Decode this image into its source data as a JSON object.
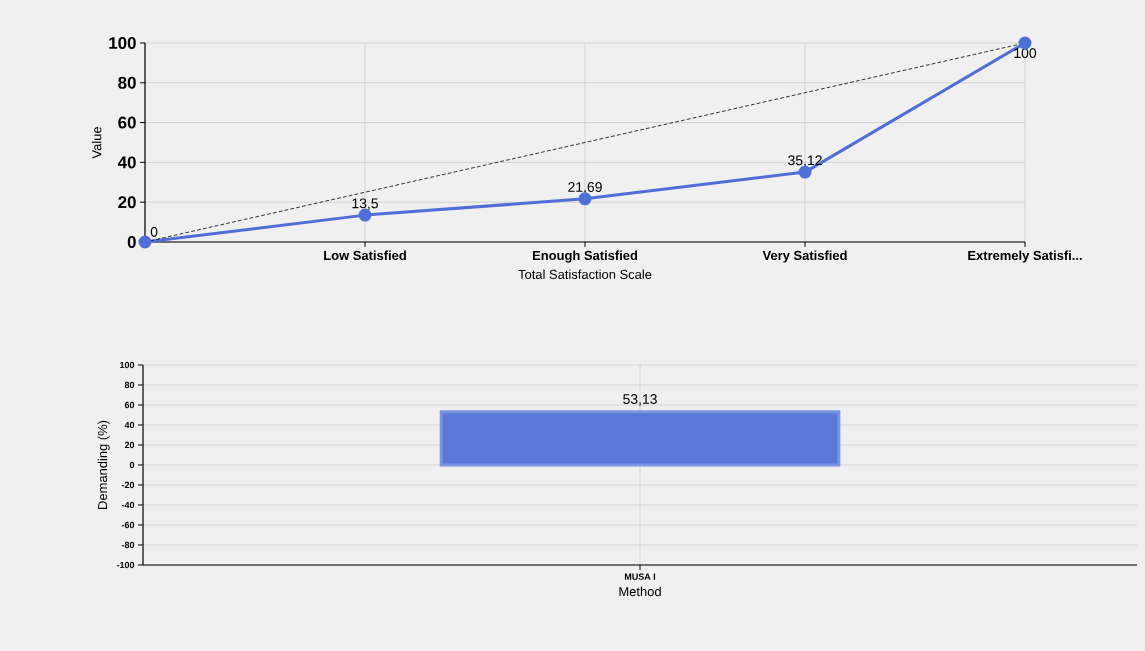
{
  "chart_data": [
    {
      "type": "line",
      "xlabel": "Total Satisfaction Scale",
      "ylabel": "Value",
      "categories": [
        null,
        "Low Satisfied",
        "Enough Satisfied",
        "Very Satisfied",
        "Extremely Satisfi..."
      ],
      "series": [
        {
          "type": "line",
          "color": "#4f6fd8",
          "values": [
            0,
            13.5,
            21.69,
            35.12,
            100
          ],
          "value_labels": [
            "0",
            "13,5",
            "21,69",
            "35,12",
            "100"
          ],
          "marker": "circle",
          "line_style": "solid"
        },
        {
          "type": "line",
          "color": "#000000",
          "values": [
            0,
            25,
            50,
            75,
            100
          ],
          "marker": "none",
          "line_style": "dashed"
        }
      ],
      "ylim": [
        0,
        100
      ],
      "yticks": [
        0,
        20,
        40,
        60,
        80,
        100
      ],
      "grid": true
    },
    {
      "type": "bar",
      "xlabel": "Method",
      "ylabel": "Demanding (%)",
      "categories": [
        "MUSA I"
      ],
      "values": [
        53.13
      ],
      "value_labels": [
        "53,13"
      ],
      "color": "#5a78d8",
      "ylim": [
        -100,
        100
      ],
      "yticks": [
        -100,
        -80,
        -60,
        -40,
        -20,
        0,
        20,
        40,
        60,
        80,
        100
      ],
      "grid": true
    }
  ]
}
